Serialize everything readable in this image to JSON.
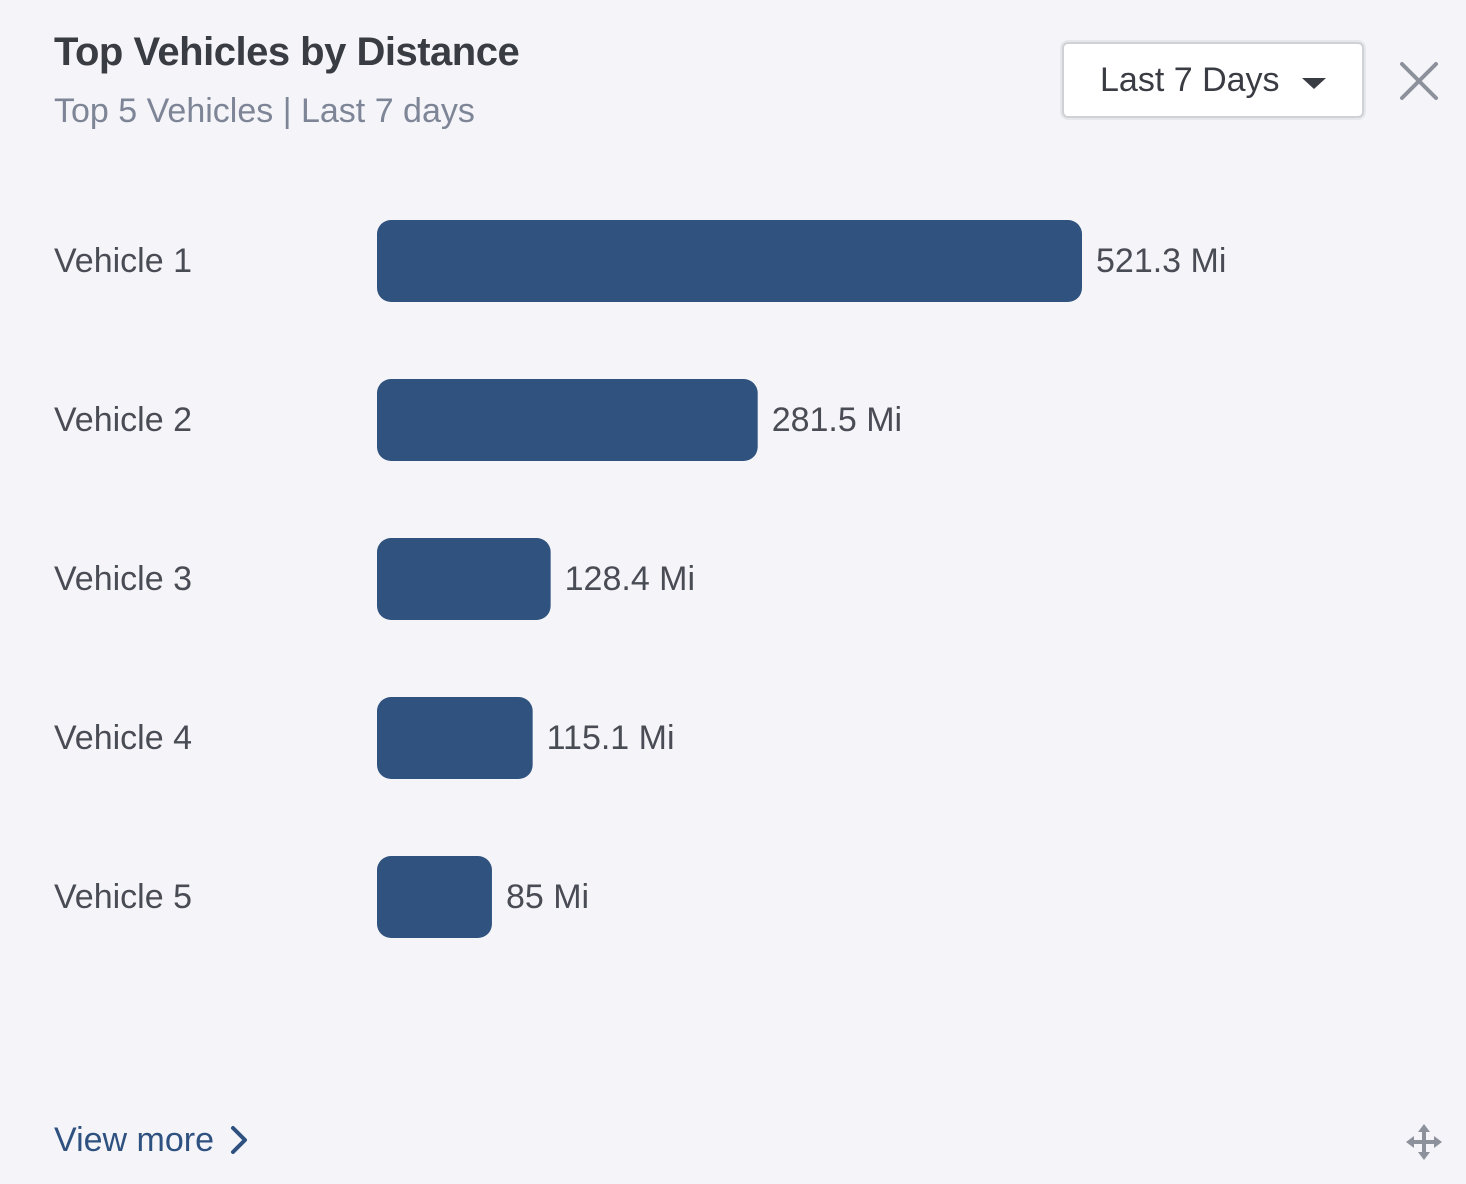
{
  "header": {
    "title": "Top Vehicles by Distance",
    "subtitle": "Top 5 Vehicles | Last 7 days"
  },
  "range_select": {
    "selected": "Last 7 Days",
    "icon": "caret-down-icon"
  },
  "close": {
    "icon": "close-icon"
  },
  "footer": {
    "view_more_label": "View more",
    "view_more_icon": "chevron-right-icon",
    "move_icon": "move-icon"
  },
  "colors": {
    "bar": "#2f527e",
    "link": "#2e5180",
    "background": "#f5f5f9"
  },
  "chart_data": {
    "type": "bar",
    "orientation": "horizontal",
    "categories": [
      "Vehicle 1",
      "Vehicle 2",
      "Vehicle 3",
      "Vehicle 4",
      "Vehicle 5"
    ],
    "values": [
      521.3,
      281.5,
      128.4,
      115.1,
      85
    ],
    "value_labels": [
      "521.3 Mi",
      "281.5 Mi",
      "128.4 Mi",
      "115.1 Mi",
      "85 Mi"
    ],
    "unit": "Mi",
    "grid": false
  }
}
